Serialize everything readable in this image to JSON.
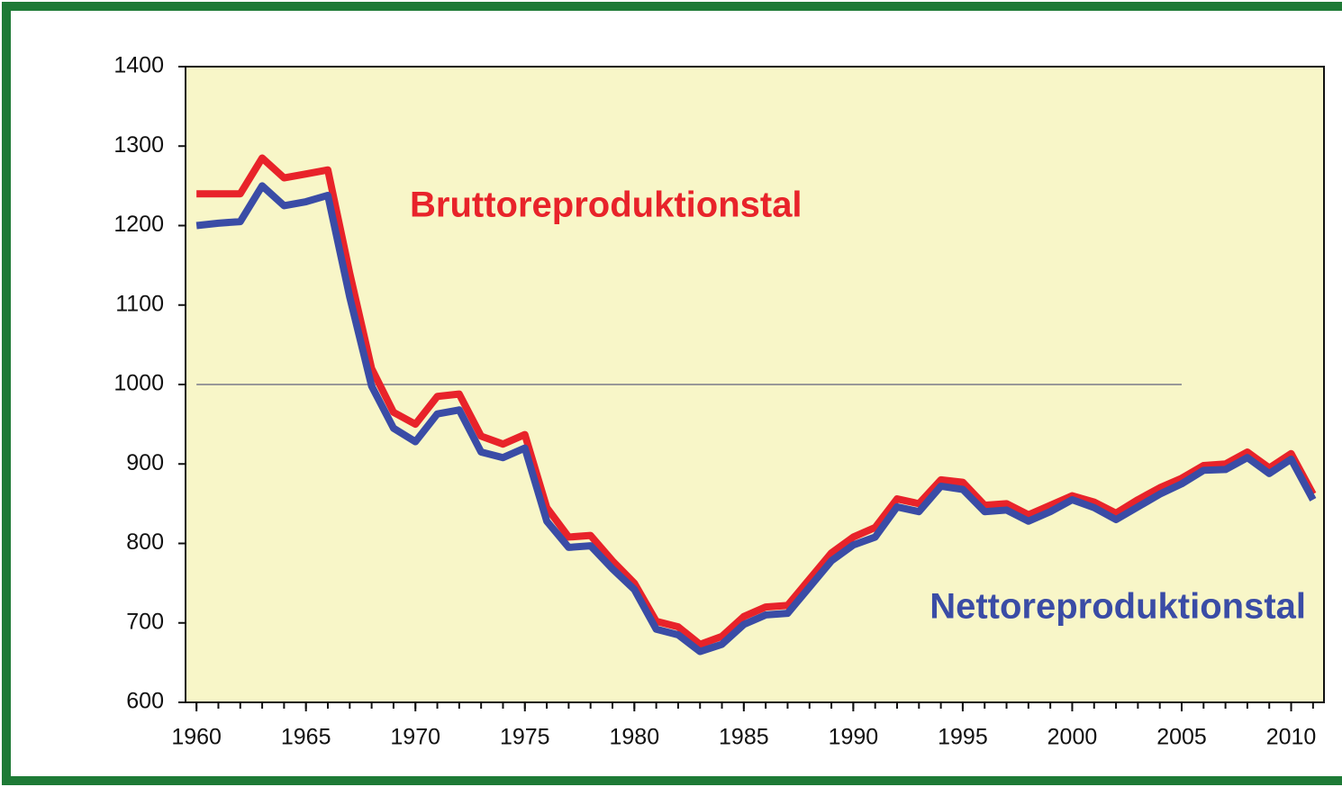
{
  "chart_data": {
    "type": "line",
    "x": [
      1960,
      1961,
      1962,
      1963,
      1964,
      1965,
      1966,
      1967,
      1968,
      1969,
      1970,
      1971,
      1972,
      1973,
      1974,
      1975,
      1976,
      1977,
      1978,
      1979,
      1980,
      1981,
      1982,
      1983,
      1984,
      1985,
      1986,
      1987,
      1988,
      1989,
      1990,
      1991,
      1992,
      1993,
      1994,
      1995,
      1996,
      1997,
      1998,
      1999,
      2000,
      2001,
      2002,
      2003,
      2004,
      2005,
      2006,
      2007,
      2008,
      2009,
      2010,
      2011
    ],
    "series": [
      {
        "name": "Bruttoreproduktionstal",
        "color": "#e8232a",
        "values": [
          1240,
          1240,
          1240,
          1285,
          1260,
          1265,
          1270,
          1140,
          1020,
          965,
          950,
          985,
          988,
          935,
          925,
          937,
          845,
          808,
          810,
          778,
          750,
          702,
          695,
          673,
          683,
          708,
          720,
          722,
          755,
          788,
          808,
          820,
          856,
          850,
          880,
          877,
          848,
          850,
          836,
          848,
          860,
          852,
          838,
          855,
          870,
          882,
          898,
          900,
          915,
          895,
          913,
          862
        ]
      },
      {
        "name": "Nettoreproduktionstal",
        "color": "#3a4ca6",
        "values": [
          1200,
          1203,
          1205,
          1250,
          1225,
          1230,
          1238,
          1110,
          998,
          945,
          928,
          963,
          968,
          915,
          908,
          920,
          828,
          795,
          797,
          768,
          742,
          692,
          685,
          664,
          673,
          698,
          710,
          712,
          745,
          778,
          798,
          808,
          846,
          840,
          872,
          868,
          840,
          842,
          828,
          840,
          855,
          845,
          830,
          846,
          862,
          875,
          892,
          893,
          908,
          888,
          906,
          855
        ]
      }
    ],
    "reference_line": {
      "y": 1000,
      "x": [
        1960,
        2005
      ],
      "color": "#999999"
    },
    "xlim": [
      1959.5,
      2011.5
    ],
    "xticks": [
      1960,
      1965,
      1970,
      1975,
      1980,
      1985,
      1990,
      1995,
      2000,
      2005,
      2010
    ],
    "ylim": [
      600,
      1400
    ],
    "yticks": [
      600,
      700,
      800,
      900,
      1000,
      1100,
      1200,
      1300,
      1400
    ]
  }
}
